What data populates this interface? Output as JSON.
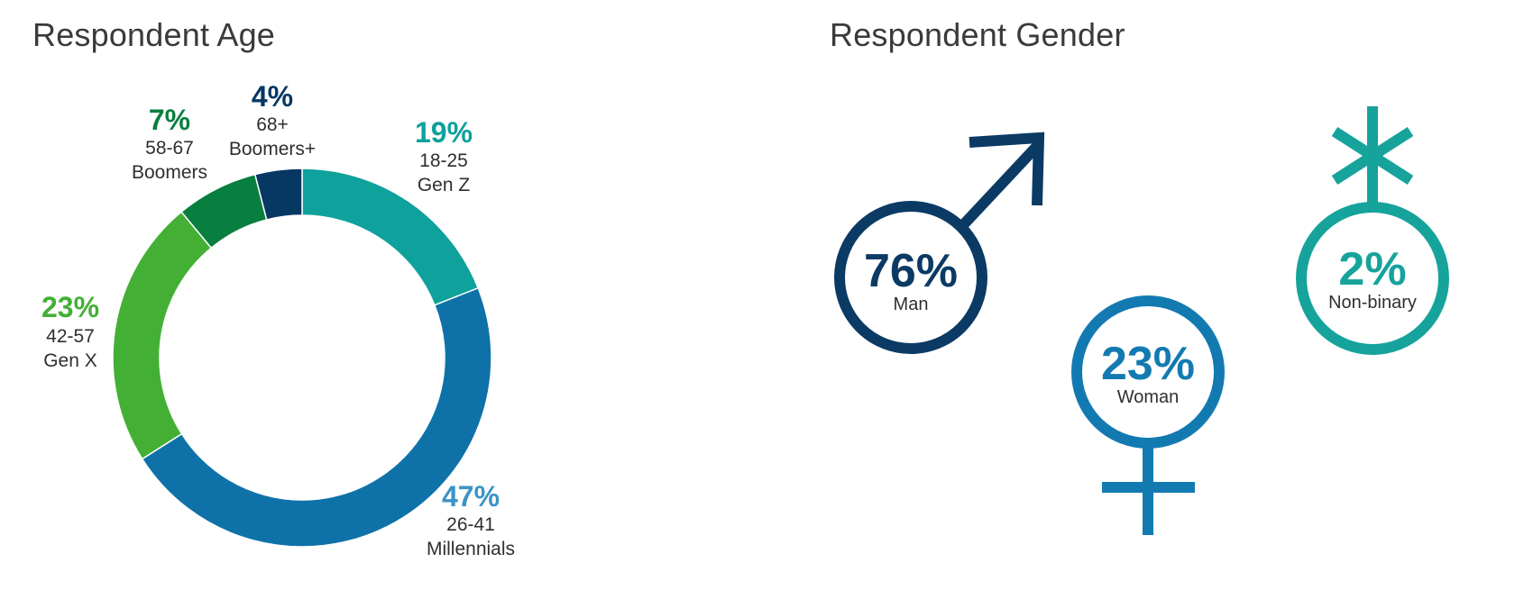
{
  "chart_data": [
    {
      "type": "pie",
      "variant": "donut",
      "title": "Respondent Age",
      "slices": [
        {
          "value": 19,
          "pct_label": "19%",
          "range": "18-25",
          "group": "Gen Z",
          "color": "#0fa19c"
        },
        {
          "value": 47,
          "pct_label": "47%",
          "range": "26-41",
          "group": "Millennials",
          "color": "#0e72a8",
          "label_color": "#3a93c6"
        },
        {
          "value": 23,
          "pct_label": "23%",
          "range": "42-57",
          "group": "Gen X",
          "color": "#43b035"
        },
        {
          "value": 7,
          "pct_label": "7%",
          "range": "58-67",
          "group": "Boomers",
          "color": "#087f3e"
        },
        {
          "value": 4,
          "pct_label": "4%",
          "range": "68+",
          "group": "Boomers+",
          "color": "#073763"
        }
      ]
    },
    {
      "type": "pictograph",
      "title": "Respondent Gender",
      "items": [
        {
          "value": 76,
          "pct_label": "76%",
          "label": "Man",
          "symbol": "male-symbol-icon",
          "color": "#0b3a64"
        },
        {
          "value": 23,
          "pct_label": "23%",
          "label": "Woman",
          "symbol": "female-symbol-icon",
          "color": "#137ab1"
        },
        {
          "value": 2,
          "pct_label": "2%",
          "label": "Non-binary",
          "symbol": "nonbinary-symbol-icon",
          "color": "#16a39c"
        }
      ]
    }
  ]
}
